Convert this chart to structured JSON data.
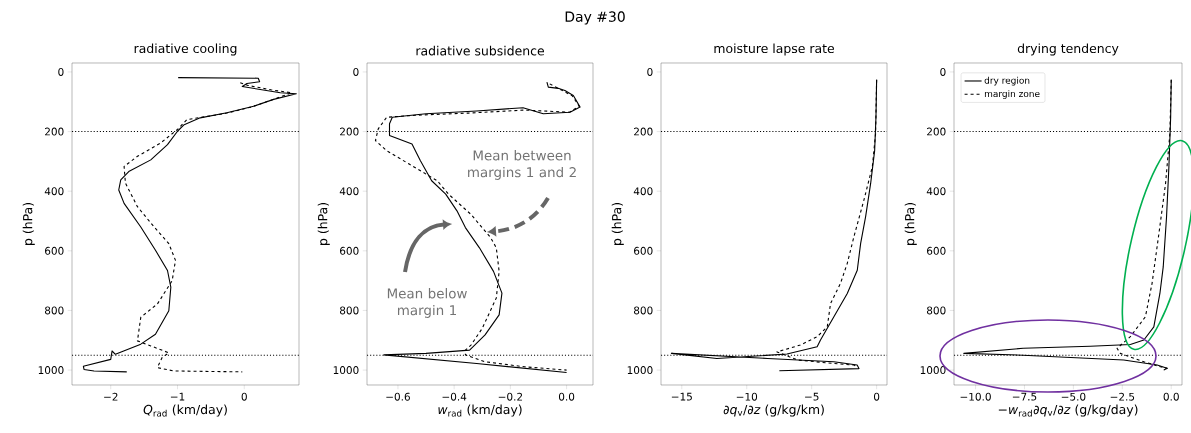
{
  "chart_data": [
    {
      "type": "line",
      "title": "radiative cooling",
      "xlabel": "*Q*$_{rad}$ (km/day)",
      "ylabel": "p (hPa)",
      "annotations": [
        "Day #30"
      ],
      "xlim": [
        -2.58,
        0.82
      ],
      "ylim": [
        1050,
        -30
      ],
      "xticks": [
        {
          "value": -2,
          "label": "−2"
        },
        {
          "value": -1,
          "label": "−1"
        },
        0
      ],
      "yticks": [
        0,
        200,
        400,
        600,
        800,
        1000
      ],
      "grid": false,
      "marker": "none",
      "ref_lines": [
        {
          "axis": "y",
          "value": 200,
          "color": "#000000",
          "line_style": "dotted"
        },
        {
          "axis": "y",
          "value": 950,
          "color": "#000000",
          "line_style": "dotted"
        }
      ],
      "series": [
        {
          "color": "#000000",
          "line_style": "solid",
          "x": [
            -0.99,
            0.21,
            0.23,
            0.04,
            -0.03,
            0.54,
            0.78,
            0.44,
            0.14,
            -0.26,
            -0.66,
            -0.9,
            -1.0,
            -1.15,
            -1.4,
            -1.73,
            -1.85,
            -1.88,
            -1.8,
            -1.55,
            -1.33,
            -1.15,
            -1.1,
            -1.13,
            -1.33,
            -1.55,
            -1.93,
            -1.98,
            -2.0,
            -2.41,
            -2.4,
            -2.25,
            -1.76
          ],
          "values": [
            19,
            21,
            33,
            39,
            49,
            70,
            73,
            92,
            115,
            137,
            154,
            177,
            199,
            244,
            295,
            334,
            362,
            396,
            441,
            520,
            598,
            666,
            722,
            801,
            880,
            913,
            947,
            936,
            964,
            987,
            998,
            1003,
            1006
          ]
        },
        {
          "color": "#000000",
          "line_style": "dashed",
          "x": [
            -0.06,
            0.05,
            0.4,
            0.71,
            0.4,
            0.1,
            -0.3,
            -0.86,
            -1.0,
            -1.25,
            -1.6,
            -1.8,
            -1.78,
            -1.6,
            -1.35,
            -1.13,
            -1.03,
            -1.08,
            -1.3,
            -1.55,
            -1.6,
            -1.4,
            -1.13,
            -1.23,
            -1.28,
            -1.3,
            -1.05,
            -0.03
          ],
          "values": [
            36,
            45,
            60,
            70,
            95,
            118,
            140,
            160,
            193,
            238,
            283,
            317,
            373,
            452,
            520,
            576,
            632,
            700,
            778,
            823,
            902,
            919,
            942,
            958,
            981,
            992,
            1003,
            1006
          ]
        }
      ]
    },
    {
      "type": "line",
      "title": "radiative subsidence",
      "xlabel": "*w*$_{rad}$ (km/day)",
      "ylabel": "p (hPa)",
      "annotations": [
        "Mean between margins 1 and 2",
        "Mean below margin 1"
      ],
      "xlim": [
        -0.71,
        0.094
      ],
      "ylim": [
        1050,
        -30
      ],
      "xticks": [
        {
          "value": -0.6,
          "label": "−0.6"
        },
        {
          "value": -0.4,
          "label": "−0.4"
        },
        {
          "value": -0.2,
          "label": "−0.2"
        },
        {
          "value": 0,
          "label": "0.0"
        }
      ],
      "yticks": [
        0,
        200,
        400,
        600,
        800,
        1000
      ],
      "grid": false,
      "marker": "none",
      "ref_lines": [
        {
          "axis": "y",
          "value": 200,
          "color": "#000000",
          "line_style": "dotted"
        },
        {
          "axis": "y",
          "value": 950,
          "color": "#000000",
          "line_style": "dotted"
        }
      ],
      "series": [
        {
          "color": "#000000",
          "line_style": "solid",
          "x": [
            -0.07,
            -0.065,
            -0.03,
            -0.006,
            0.024,
            0.048,
            0.012,
            -0.083,
            -0.155,
            -0.32,
            -0.5,
            -0.62,
            -0.63,
            -0.63,
            -0.55,
            -0.52,
            -0.48,
            -0.43,
            -0.39,
            -0.36,
            -0.31,
            -0.26,
            -0.23,
            -0.24,
            -0.29,
            -0.345,
            -0.5,
            -0.65,
            -0.32,
            0.0
          ],
          "values": [
            34,
            51,
            55,
            62,
            79,
            118,
            135,
            140,
            120,
            131,
            140,
            152,
            174,
            213,
            242,
            298,
            365,
            410,
            466,
            522,
            590,
            669,
            742,
            815,
            882,
            933,
            944,
            949,
            978,
            1008
          ]
        },
        {
          "color": "#000000",
          "line_style": "dashed",
          "x": [
            -0.06,
            -0.02,
            0.02,
            0.045,
            0.01,
            -0.15,
            -0.35,
            -0.55,
            -0.64,
            -0.67,
            -0.68,
            -0.64,
            -0.56,
            -0.46,
            -0.42,
            -0.34,
            -0.27,
            -0.25,
            -0.24,
            -0.25,
            -0.3,
            -0.34,
            -0.36,
            -0.36,
            -0.29,
            -0.15,
            0.0
          ],
          "values": [
            40,
            60,
            80,
            115,
            135,
            128,
            138,
            146,
            152,
            191,
            230,
            264,
            309,
            365,
            410,
            478,
            556,
            590,
            669,
            758,
            860,
            916,
            933,
            949,
            972,
            989,
            1000
          ]
        }
      ]
    },
    {
      "type": "line",
      "title": "moisture lapse rate",
      "xlabel": "∂*q*$_{v}$/∂*z* (g/kg/km)",
      "ylabel": "p (hPa)",
      "xlim": [
        -16.6,
        0.8
      ],
      "ylim": [
        1050,
        -30
      ],
      "xticks": [
        {
          "value": -15,
          "label": "−15"
        },
        {
          "value": -10,
          "label": "−10"
        },
        {
          "value": -5,
          "label": "−5"
        },
        0
      ],
      "yticks": [
        0,
        200,
        400,
        600,
        800,
        1000
      ],
      "grid": false,
      "marker": "none",
      "ref_lines": [
        {
          "axis": "y",
          "value": 200,
          "color": "#000000",
          "line_style": "dotted"
        },
        {
          "axis": "y",
          "value": 950,
          "color": "#000000",
          "line_style": "dotted"
        }
      ],
      "series": [
        {
          "color": "#000000",
          "line_style": "solid",
          "x": [
            0,
            -0.05,
            -0.15,
            -0.46,
            -0.85,
            -1.23,
            -1.49,
            -2.26,
            -3.29,
            -4.32,
            -4.58,
            -6.9,
            -12.3,
            -15.8,
            -8.4,
            -3.3,
            -1.5,
            -1.36,
            -7.49
          ],
          "values": [
            26,
            151,
            263,
            374,
            486,
            575,
            665,
            743,
            821,
            899,
            922,
            946,
            961,
            944,
            961,
            972,
            983,
            995,
            1002
          ]
        },
        {
          "color": "#000000",
          "line_style": "dashed",
          "x": [
            0,
            -0.08,
            -0.33,
            -0.98,
            -1.75,
            -2.26,
            -2.78,
            -3.55,
            -3.8,
            -4.58,
            -5.87,
            -7.67,
            -6.1,
            -3.3,
            -1.75,
            -1.49
          ],
          "values": [
            26,
            207,
            318,
            430,
            553,
            642,
            709,
            777,
            855,
            888,
            916,
            939,
            966,
            978,
            983,
            989
          ]
        }
      ]
    },
    {
      "type": "line",
      "title": "drying tendency",
      "xlabel": "−*w*$_{rad}$∂*q*$_{v}$/∂*z* (g/kg/day)",
      "ylabel": "p (hPa)",
      "xlim": [
        -11.1,
        0.55
      ],
      "ylim": [
        1050,
        -30
      ],
      "xticks": [
        {
          "value": -10,
          "label": "−10.0"
        },
        {
          "value": -7.5,
          "label": "−7.5"
        },
        {
          "value": -5,
          "label": "−5.0"
        },
        {
          "value": -2.5,
          "label": "−2.5"
        },
        {
          "value": 0,
          "label": "0.0"
        }
      ],
      "yticks": [
        0,
        200,
        400,
        600,
        800,
        1000
      ],
      "grid": false,
      "marker": "none",
      "legend": "top left",
      "ref_lines": [
        {
          "axis": "y",
          "value": 200,
          "color": "#000000",
          "line_style": "dotted"
        },
        {
          "axis": "y",
          "value": 950,
          "color": "#000000",
          "line_style": "dotted"
        }
      ],
      "series": [
        {
          "name": "dry region",
          "color": "#000000",
          "line_style": "solid",
          "x": [
            0,
            -0.03,
            -0.12,
            -0.24,
            -0.41,
            -0.58,
            -0.89,
            -1.4,
            -2.09,
            -4.14,
            -7.57,
            -10.6,
            -7.57,
            -2.43,
            -0.72,
            -0.21,
            -0.38
          ],
          "values": [
            26,
            151,
            318,
            486,
            654,
            743,
            855,
            899,
            914,
            920,
            927,
            944,
            950,
            966,
            983,
            994,
            1000
          ]
        },
        {
          "name": "margin zone",
          "color": "#000000",
          "line_style": "dashed",
          "x": [
            0,
            -0.07,
            -0.29,
            -0.63,
            -0.98,
            -1.32,
            -2.09,
            -2.77,
            -2.6,
            -1.4,
            -0.55,
            -0.21,
            -0.38
          ],
          "values": [
            26,
            207,
            374,
            542,
            709,
            821,
            888,
            927,
            944,
            972,
            989,
            994,
            1002
          ]
        }
      ]
    }
  ]
}
